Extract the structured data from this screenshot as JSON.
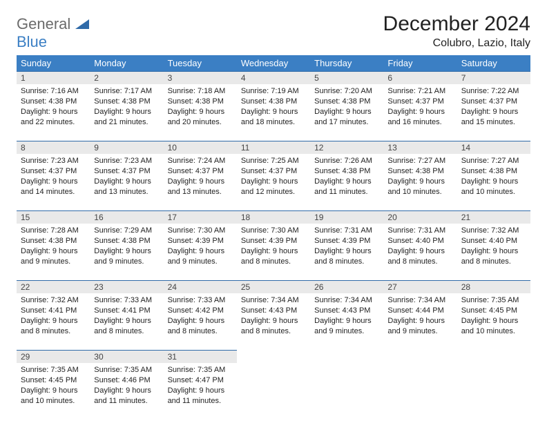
{
  "brand": {
    "part1": "General",
    "part2": "Blue"
  },
  "title": "December 2024",
  "location": "Colubro, Lazio, Italy",
  "colors": {
    "header_bg": "#3b7fc4",
    "header_text": "#ffffff",
    "daynum_bg": "#e9e9e9",
    "rule": "#2f6aa8",
    "logo_gray": "#6b6b6b",
    "logo_blue": "#3b7fc4"
  },
  "weekdays": [
    "Sunday",
    "Monday",
    "Tuesday",
    "Wednesday",
    "Thursday",
    "Friday",
    "Saturday"
  ],
  "weeks": [
    [
      {
        "n": "1",
        "sr": "Sunrise: 7:16 AM",
        "ss": "Sunset: 4:38 PM",
        "d1": "Daylight: 9 hours",
        "d2": "and 22 minutes."
      },
      {
        "n": "2",
        "sr": "Sunrise: 7:17 AM",
        "ss": "Sunset: 4:38 PM",
        "d1": "Daylight: 9 hours",
        "d2": "and 21 minutes."
      },
      {
        "n": "3",
        "sr": "Sunrise: 7:18 AM",
        "ss": "Sunset: 4:38 PM",
        "d1": "Daylight: 9 hours",
        "d2": "and 20 minutes."
      },
      {
        "n": "4",
        "sr": "Sunrise: 7:19 AM",
        "ss": "Sunset: 4:38 PM",
        "d1": "Daylight: 9 hours",
        "d2": "and 18 minutes."
      },
      {
        "n": "5",
        "sr": "Sunrise: 7:20 AM",
        "ss": "Sunset: 4:38 PM",
        "d1": "Daylight: 9 hours",
        "d2": "and 17 minutes."
      },
      {
        "n": "6",
        "sr": "Sunrise: 7:21 AM",
        "ss": "Sunset: 4:37 PM",
        "d1": "Daylight: 9 hours",
        "d2": "and 16 minutes."
      },
      {
        "n": "7",
        "sr": "Sunrise: 7:22 AM",
        "ss": "Sunset: 4:37 PM",
        "d1": "Daylight: 9 hours",
        "d2": "and 15 minutes."
      }
    ],
    [
      {
        "n": "8",
        "sr": "Sunrise: 7:23 AM",
        "ss": "Sunset: 4:37 PM",
        "d1": "Daylight: 9 hours",
        "d2": "and 14 minutes."
      },
      {
        "n": "9",
        "sr": "Sunrise: 7:23 AM",
        "ss": "Sunset: 4:37 PM",
        "d1": "Daylight: 9 hours",
        "d2": "and 13 minutes."
      },
      {
        "n": "10",
        "sr": "Sunrise: 7:24 AM",
        "ss": "Sunset: 4:37 PM",
        "d1": "Daylight: 9 hours",
        "d2": "and 13 minutes."
      },
      {
        "n": "11",
        "sr": "Sunrise: 7:25 AM",
        "ss": "Sunset: 4:37 PM",
        "d1": "Daylight: 9 hours",
        "d2": "and 12 minutes."
      },
      {
        "n": "12",
        "sr": "Sunrise: 7:26 AM",
        "ss": "Sunset: 4:38 PM",
        "d1": "Daylight: 9 hours",
        "d2": "and 11 minutes."
      },
      {
        "n": "13",
        "sr": "Sunrise: 7:27 AM",
        "ss": "Sunset: 4:38 PM",
        "d1": "Daylight: 9 hours",
        "d2": "and 10 minutes."
      },
      {
        "n": "14",
        "sr": "Sunrise: 7:27 AM",
        "ss": "Sunset: 4:38 PM",
        "d1": "Daylight: 9 hours",
        "d2": "and 10 minutes."
      }
    ],
    [
      {
        "n": "15",
        "sr": "Sunrise: 7:28 AM",
        "ss": "Sunset: 4:38 PM",
        "d1": "Daylight: 9 hours",
        "d2": "and 9 minutes."
      },
      {
        "n": "16",
        "sr": "Sunrise: 7:29 AM",
        "ss": "Sunset: 4:38 PM",
        "d1": "Daylight: 9 hours",
        "d2": "and 9 minutes."
      },
      {
        "n": "17",
        "sr": "Sunrise: 7:30 AM",
        "ss": "Sunset: 4:39 PM",
        "d1": "Daylight: 9 hours",
        "d2": "and 9 minutes."
      },
      {
        "n": "18",
        "sr": "Sunrise: 7:30 AM",
        "ss": "Sunset: 4:39 PM",
        "d1": "Daylight: 9 hours",
        "d2": "and 8 minutes."
      },
      {
        "n": "19",
        "sr": "Sunrise: 7:31 AM",
        "ss": "Sunset: 4:39 PM",
        "d1": "Daylight: 9 hours",
        "d2": "and 8 minutes."
      },
      {
        "n": "20",
        "sr": "Sunrise: 7:31 AM",
        "ss": "Sunset: 4:40 PM",
        "d1": "Daylight: 9 hours",
        "d2": "and 8 minutes."
      },
      {
        "n": "21",
        "sr": "Sunrise: 7:32 AM",
        "ss": "Sunset: 4:40 PM",
        "d1": "Daylight: 9 hours",
        "d2": "and 8 minutes."
      }
    ],
    [
      {
        "n": "22",
        "sr": "Sunrise: 7:32 AM",
        "ss": "Sunset: 4:41 PM",
        "d1": "Daylight: 9 hours",
        "d2": "and 8 minutes."
      },
      {
        "n": "23",
        "sr": "Sunrise: 7:33 AM",
        "ss": "Sunset: 4:41 PM",
        "d1": "Daylight: 9 hours",
        "d2": "and 8 minutes."
      },
      {
        "n": "24",
        "sr": "Sunrise: 7:33 AM",
        "ss": "Sunset: 4:42 PM",
        "d1": "Daylight: 9 hours",
        "d2": "and 8 minutes."
      },
      {
        "n": "25",
        "sr": "Sunrise: 7:34 AM",
        "ss": "Sunset: 4:43 PM",
        "d1": "Daylight: 9 hours",
        "d2": "and 8 minutes."
      },
      {
        "n": "26",
        "sr": "Sunrise: 7:34 AM",
        "ss": "Sunset: 4:43 PM",
        "d1": "Daylight: 9 hours",
        "d2": "and 9 minutes."
      },
      {
        "n": "27",
        "sr": "Sunrise: 7:34 AM",
        "ss": "Sunset: 4:44 PM",
        "d1": "Daylight: 9 hours",
        "d2": "and 9 minutes."
      },
      {
        "n": "28",
        "sr": "Sunrise: 7:35 AM",
        "ss": "Sunset: 4:45 PM",
        "d1": "Daylight: 9 hours",
        "d2": "and 10 minutes."
      }
    ],
    [
      {
        "n": "29",
        "sr": "Sunrise: 7:35 AM",
        "ss": "Sunset: 4:45 PM",
        "d1": "Daylight: 9 hours",
        "d2": "and 10 minutes."
      },
      {
        "n": "30",
        "sr": "Sunrise: 7:35 AM",
        "ss": "Sunset: 4:46 PM",
        "d1": "Daylight: 9 hours",
        "d2": "and 11 minutes."
      },
      {
        "n": "31",
        "sr": "Sunrise: 7:35 AM",
        "ss": "Sunset: 4:47 PM",
        "d1": "Daylight: 9 hours",
        "d2": "and 11 minutes."
      },
      null,
      null,
      null,
      null
    ]
  ]
}
